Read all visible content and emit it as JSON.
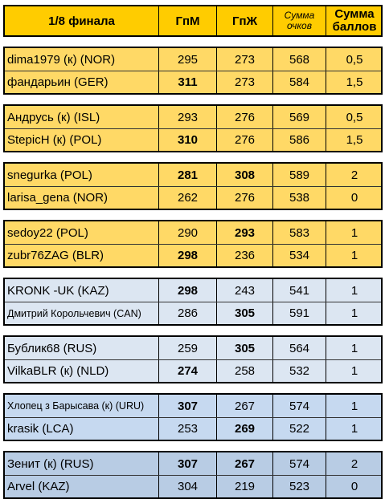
{
  "header": {
    "title": "1/8 финала",
    "gpm": "ГпМ",
    "gpz": "ГпЖ",
    "sum_line1": "Сумма",
    "sum_line2": "очков",
    "pts_line1": "Сумма",
    "pts_line2": "баллов"
  },
  "colors": {
    "header": "#ffcc00",
    "orange": "#ffd966",
    "blue_light": "#dce6f2",
    "blue_mid": "#c6d9f0",
    "blue_dark": "#b8cce4"
  },
  "matches": [
    {
      "rows": [
        {
          "name": "dima1979 (к) (NOR)",
          "gpm": "295",
          "gpz": "273",
          "sum": "568",
          "pts": "0,5"
        },
        {
          "name": "фандарьин (GER)",
          "gpm": "311",
          "gpz": "273",
          "sum": "584",
          "pts": "1,5"
        }
      ]
    },
    {
      "rows": [
        {
          "name": "Андрусь (к) (ISL)",
          "gpm": "293",
          "gpz": "276",
          "sum": "569",
          "pts": "0,5"
        },
        {
          "name": "StepicH (к) (POL)",
          "gpm": "310",
          "gpz": "276",
          "sum": "586",
          "pts": "1,5"
        }
      ]
    },
    {
      "rows": [
        {
          "name": "snegurka (POL)",
          "gpm": "281",
          "gpz": "308",
          "sum": "589",
          "pts": "2"
        },
        {
          "name": "larisa_gena (NOR)",
          "gpm": "262",
          "gpz": "276",
          "sum": "538",
          "pts": "0"
        }
      ]
    },
    {
      "rows": [
        {
          "name": "sedoy22 (POL)",
          "gpm": "290",
          "gpz": "293",
          "sum": "583",
          "pts": "1"
        },
        {
          "name": "zubr76ZAG (BLR)",
          "gpm": "298",
          "gpz": "236",
          "sum": "534",
          "pts": "1"
        }
      ]
    },
    {
      "rows": [
        {
          "name": "KRONK -UK (KAZ)",
          "gpm": "298",
          "gpz": "243",
          "sum": "541",
          "pts": "1"
        },
        {
          "name": "Дмитрий Корольчевич (CAN)",
          "gpm": "286",
          "gpz": "305",
          "sum": "591",
          "pts": "1"
        }
      ]
    },
    {
      "rows": [
        {
          "name": "Бублик68 (RUS)",
          "gpm": "259",
          "gpz": "305",
          "sum": "564",
          "pts": "1"
        },
        {
          "name": "VilkaBLR (к) (NLD)",
          "gpm": "274",
          "gpz": "258",
          "sum": "532",
          "pts": "1"
        }
      ]
    },
    {
      "rows": [
        {
          "name": "Хлопец з Барысава (к) (URU)",
          "gpm": "307",
          "gpz": "267",
          "sum": "574",
          "pts": "1"
        },
        {
          "name": "krasik (LCA)",
          "gpm": "253",
          "gpz": "269",
          "sum": "522",
          "pts": "1"
        }
      ]
    },
    {
      "rows": [
        {
          "name": "Зенит (к) (RUS)",
          "gpm": "307",
          "gpz": "267",
          "sum": "574",
          "pts": "2"
        },
        {
          "name": "Arvel (KAZ)",
          "gpm": "304",
          "gpz": "219",
          "sum": "523",
          "pts": "0"
        }
      ]
    }
  ]
}
